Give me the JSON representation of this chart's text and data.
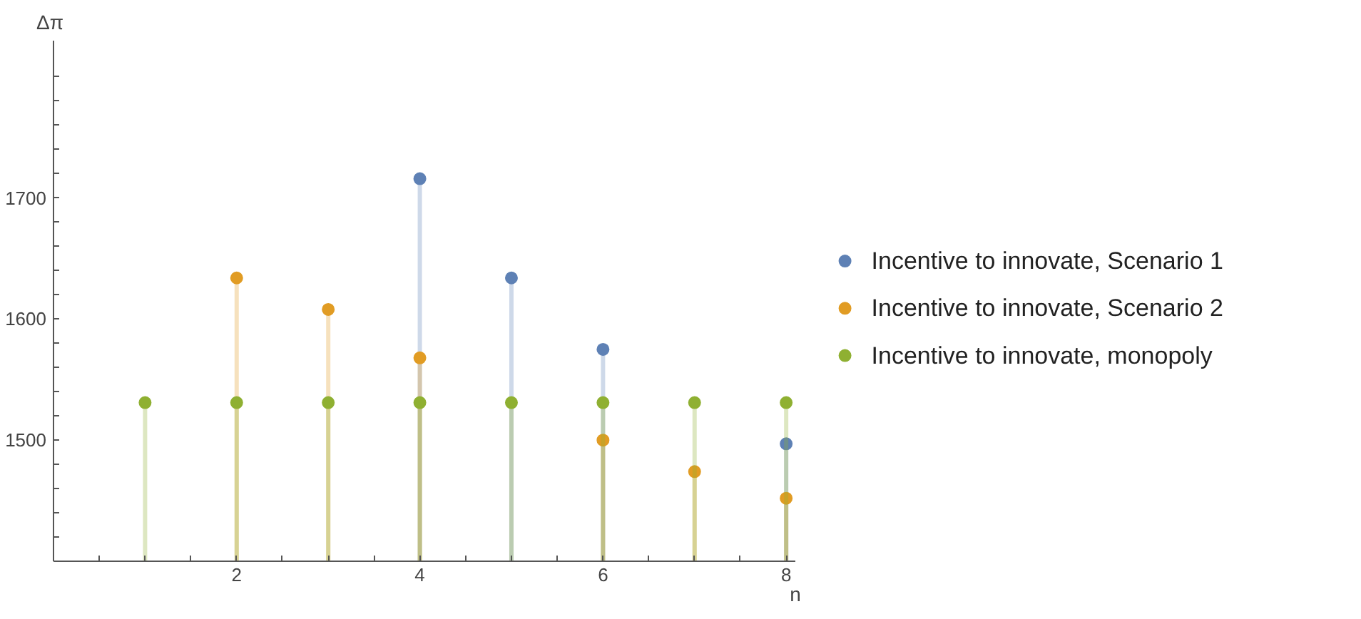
{
  "chart_data": {
    "type": "lollipop",
    "xlabel": "n",
    "ylabel": "Δπ",
    "x": [
      1,
      2,
      3,
      4,
      5,
      6,
      7,
      8
    ],
    "series": [
      {
        "name": "Incentive to innovate, Scenario 1",
        "color": "#5e81b5",
        "values": [
          null,
          null,
          null,
          1716,
          1634,
          1575,
          null,
          1497
        ]
      },
      {
        "name": "Incentive to innovate, Scenario 2",
        "color": "#e19c24",
        "values": [
          null,
          1634,
          1608,
          1568,
          null,
          1500,
          1474,
          1452
        ]
      },
      {
        "name": "Incentive to innovate, monopoly",
        "color": "#8fb032",
        "values": [
          1531,
          1531,
          1531,
          1531,
          1531,
          1531,
          1531,
          1531
        ]
      }
    ],
    "xlim": [
      0,
      8.1
    ],
    "ylim": [
      1400,
      1830
    ],
    "xticks": [
      {
        "value": 0.5,
        "label": null
      },
      {
        "value": 1,
        "label": null
      },
      {
        "value": 1.5,
        "label": null
      },
      2,
      {
        "value": 2.5,
        "label": null
      },
      {
        "value": 3,
        "label": null
      },
      {
        "value": 3.5,
        "label": null
      },
      4,
      {
        "value": 4.5,
        "label": null
      },
      {
        "value": 5,
        "label": null
      },
      {
        "value": 5.5,
        "label": null
      },
      6,
      {
        "value": 6.5,
        "label": null
      },
      {
        "value": 7,
        "label": null
      },
      {
        "value": 7.5,
        "label": null
      },
      8
    ],
    "yticks": [
      {
        "value": 1420,
        "label": null
      },
      {
        "value": 1440,
        "label": null
      },
      {
        "value": 1460,
        "label": null
      },
      {
        "value": 1480,
        "label": null
      },
      1500,
      {
        "value": 1520,
        "label": null
      },
      {
        "value": 1540,
        "label": null
      },
      {
        "value": 1560,
        "label": null
      },
      {
        "value": 1580,
        "label": null
      },
      1600,
      {
        "value": 1620,
        "label": null
      },
      {
        "value": 1640,
        "label": null
      },
      {
        "value": 1660,
        "label": null
      },
      {
        "value": 1680,
        "label": null
      },
      1700,
      {
        "value": 1720,
        "label": null
      },
      {
        "value": 1740,
        "label": null
      },
      {
        "value": 1760,
        "label": null
      },
      {
        "value": 1780,
        "label": null
      },
      {
        "value": 1800,
        "label": null
      }
    ],
    "grid": false,
    "legend": "right",
    "marker": "circle"
  }
}
